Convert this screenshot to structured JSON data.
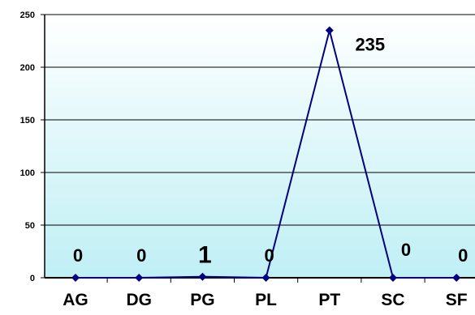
{
  "chart_data": {
    "type": "line",
    "title": "",
    "xlabel": "",
    "ylabel": "",
    "categories": [
      "AG",
      "DG",
      "PG",
      "PL",
      "PT",
      "SC",
      "SF"
    ],
    "ylim": [
      0,
      250
    ],
    "yticks": [
      0,
      50,
      100,
      150,
      200,
      250
    ],
    "grid": true,
    "legend": "none",
    "series": [
      {
        "values": [
          0,
          0,
          1,
          0,
          235,
          0,
          0
        ],
        "data_labels": [
          "0",
          "0",
          "1",
          "0",
          "235",
          "0",
          "0"
        ],
        "color": "#000080"
      }
    ],
    "colors": {
      "plot_top": "#ffffff",
      "plot_bottom": "#bfeff5",
      "line": "#000080",
      "gridline": "#000000"
    }
  }
}
